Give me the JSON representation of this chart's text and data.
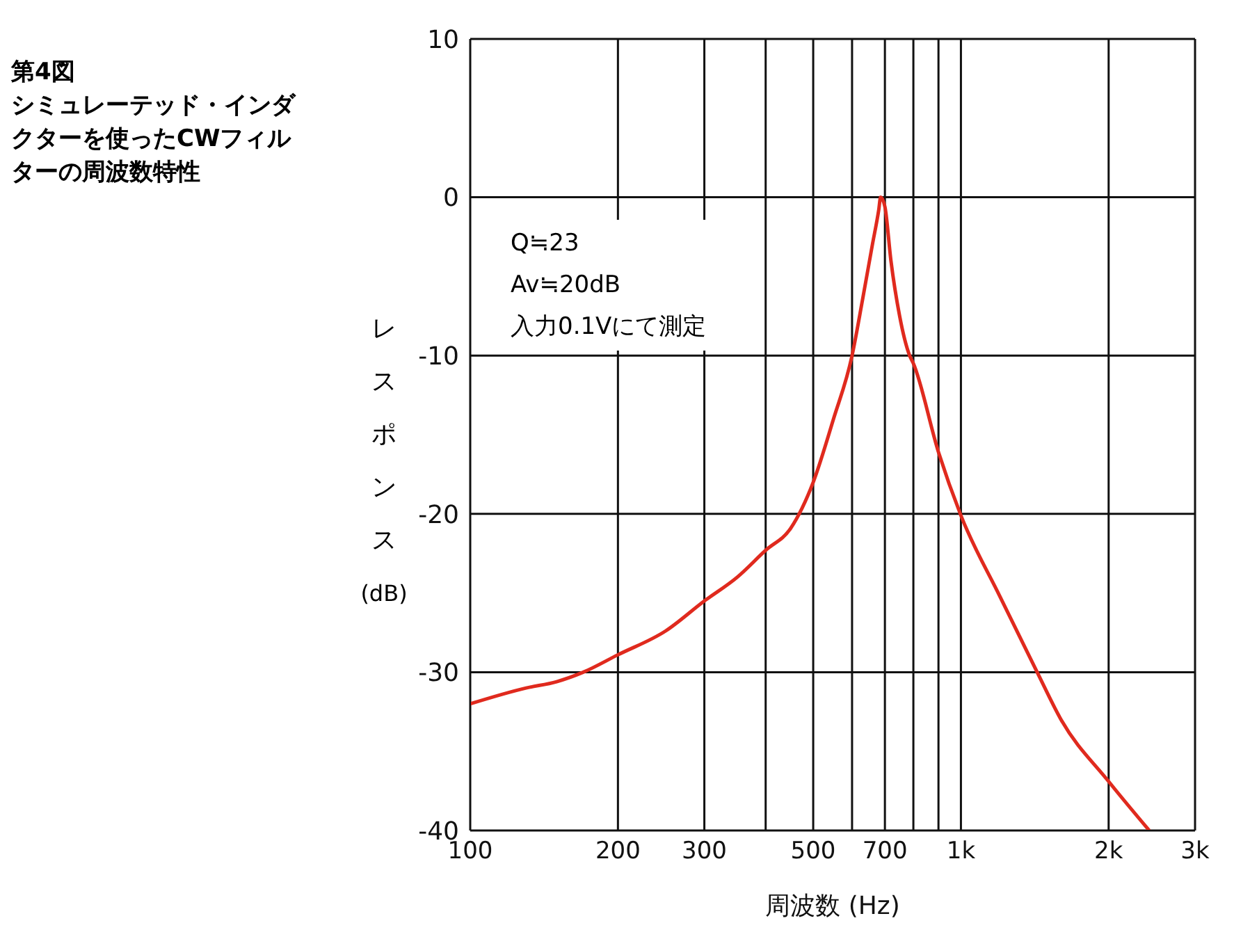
{
  "chart_data": {
    "type": "line",
    "title": "第4図",
    "subtitle": "シミュレーテッド・インダクターを使ったCWフィルターの周波数特性",
    "xlabel": "周波数 (Hz)",
    "ylabel": "レスポンス (dB)",
    "annotations": [
      "Q≒23",
      "Av≒20dB",
      "入力0.1Vにて測定"
    ],
    "log": "x",
    "grid": true,
    "legend": false,
    "marker": "none",
    "line_style": "solid",
    "xlim": [
      100,
      3000
    ],
    "ylim": [
      -40,
      10
    ],
    "xticks": [
      100,
      200,
      300,
      {
        "value": 400,
        "label": null
      },
      500,
      {
        "value": 600,
        "label": null
      },
      700,
      {
        "value": 800,
        "label": null
      },
      {
        "value": 900,
        "label": null
      },
      {
        "value": 1000,
        "label": "1k"
      },
      {
        "value": 2000,
        "label": "2k"
      },
      {
        "value": 3000,
        "label": "3k"
      }
    ],
    "yticks": [
      -40,
      -30,
      -20,
      -10,
      0,
      10
    ],
    "series": [
      {
        "color": "#e02a1e",
        "x": [
          100,
          130,
          150,
          170,
          200,
          250,
          300,
          350,
          400,
          450,
          500,
          550,
          600,
          630,
          660,
          680,
          686,
          700,
          720,
          750,
          786,
          800,
          900,
          1000,
          1200,
          1430,
          1600,
          2000,
          2420
        ],
        "values": [
          -32.0,
          -31.0,
          -30.6,
          -30.0,
          -28.9,
          -27.4,
          -25.5,
          -24.0,
          -22.3,
          -20.9,
          -18.0,
          -14.0,
          -10.0,
          -6.5,
          -3.0,
          -0.8,
          0,
          -0.6,
          -4.0,
          -7.5,
          -10.0,
          -10.5,
          -16.1,
          -20.1,
          -25.2,
          -30.0,
          -33.0,
          -36.9,
          -40.0
        ]
      }
    ]
  }
}
